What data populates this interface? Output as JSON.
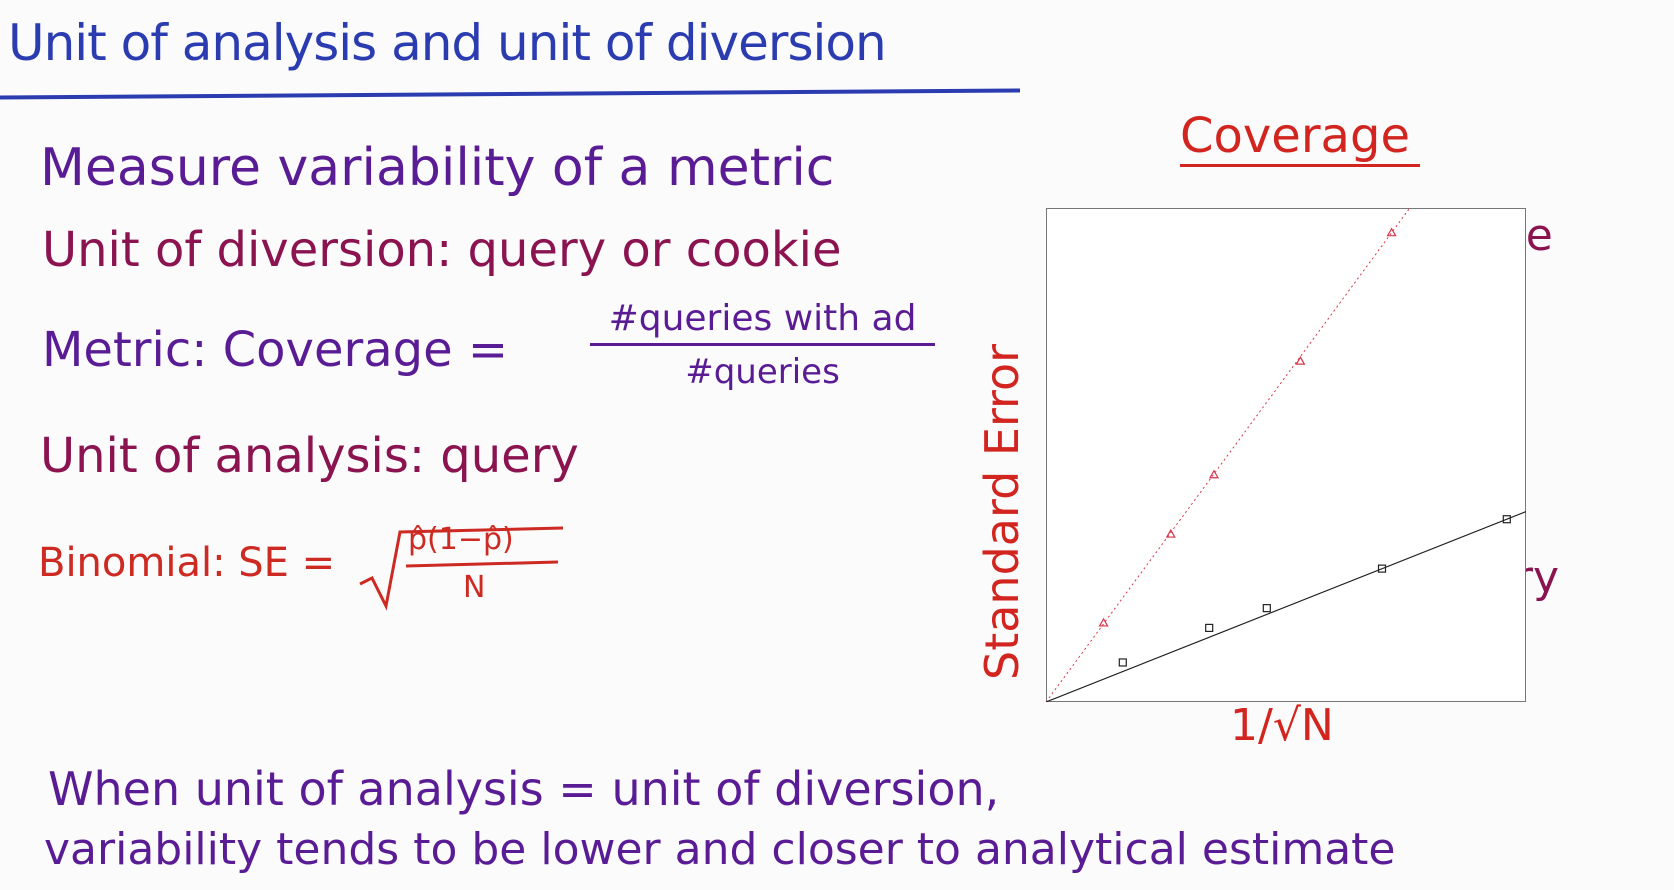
{
  "title": "Unit of analysis and unit of diversion",
  "lines": {
    "measure": "Measure variability of a metric",
    "diversion": "Unit of diversion: query or cookie",
    "metric_prefix": "Metric: Coverage =",
    "metric_numerator": "#queries with ad",
    "metric_denominator": "#queries",
    "analysis": "Unit of analysis: query",
    "binomial_prefix": "Binomial: SE =",
    "binomial_numerator": "p̂(1−p̂)",
    "binomial_denominator": "N"
  },
  "conclusion": {
    "line1": "When unit of analysis = unit of diversion,",
    "line2": "variability tends to be lower and closer to analytical estimate"
  },
  "chart_data": {
    "type": "scatter",
    "title": "Coverage",
    "xlabel": "1/√N",
    "ylabel": "Standard Error",
    "xlim": [
      0,
      1
    ],
    "ylim": [
      0,
      1
    ],
    "grid": false,
    "series": [
      {
        "name": "cookie",
        "marker": "triangle",
        "color": "#d8354a",
        "line_style": "dotted",
        "x": [
          0.12,
          0.26,
          0.35,
          0.53,
          0.72
        ],
        "y": [
          0.16,
          0.34,
          0.46,
          0.69,
          0.95
        ]
      },
      {
        "name": "query",
        "marker": "square",
        "color": "#222222",
        "line_style": "solid",
        "x": [
          0.16,
          0.34,
          0.46,
          0.7,
          0.96
        ],
        "y": [
          0.08,
          0.15,
          0.19,
          0.27,
          0.37
        ]
      }
    ]
  }
}
